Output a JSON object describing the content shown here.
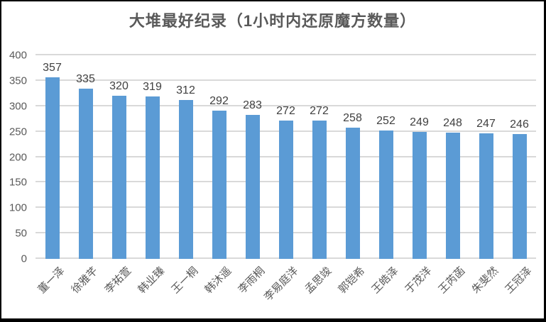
{
  "chart_data": {
    "type": "bar",
    "title": "大堆最好纪录（1小时内还原魔方数量）",
    "categories": [
      "董一泽",
      "徐雅芊",
      "李祐萱",
      "韩业臻",
      "王一桐",
      "韩沐遥",
      "李雨桐",
      "李易庭洋",
      "孟思竣",
      "郭铠希",
      "王皓泽",
      "于茂洋",
      "王芮菡",
      "朱斐然",
      "王冠泽"
    ],
    "values": [
      357,
      335,
      320,
      319,
      312,
      292,
      283,
      272,
      272,
      258,
      252,
      249,
      248,
      247,
      246
    ],
    "data_labels_visible": true,
    "xlabel": "",
    "ylabel": "",
    "ylim": [
      0,
      400
    ],
    "yticks": [
      0,
      50,
      100,
      150,
      200,
      250,
      300,
      350,
      400
    ],
    "grid": true,
    "legend_position": "none",
    "colors": {
      "bar": "#5B9BD5",
      "gridline": "#D9D9D9",
      "title": "#595959",
      "axis_label": "#595959",
      "data_label": "#404040"
    }
  }
}
